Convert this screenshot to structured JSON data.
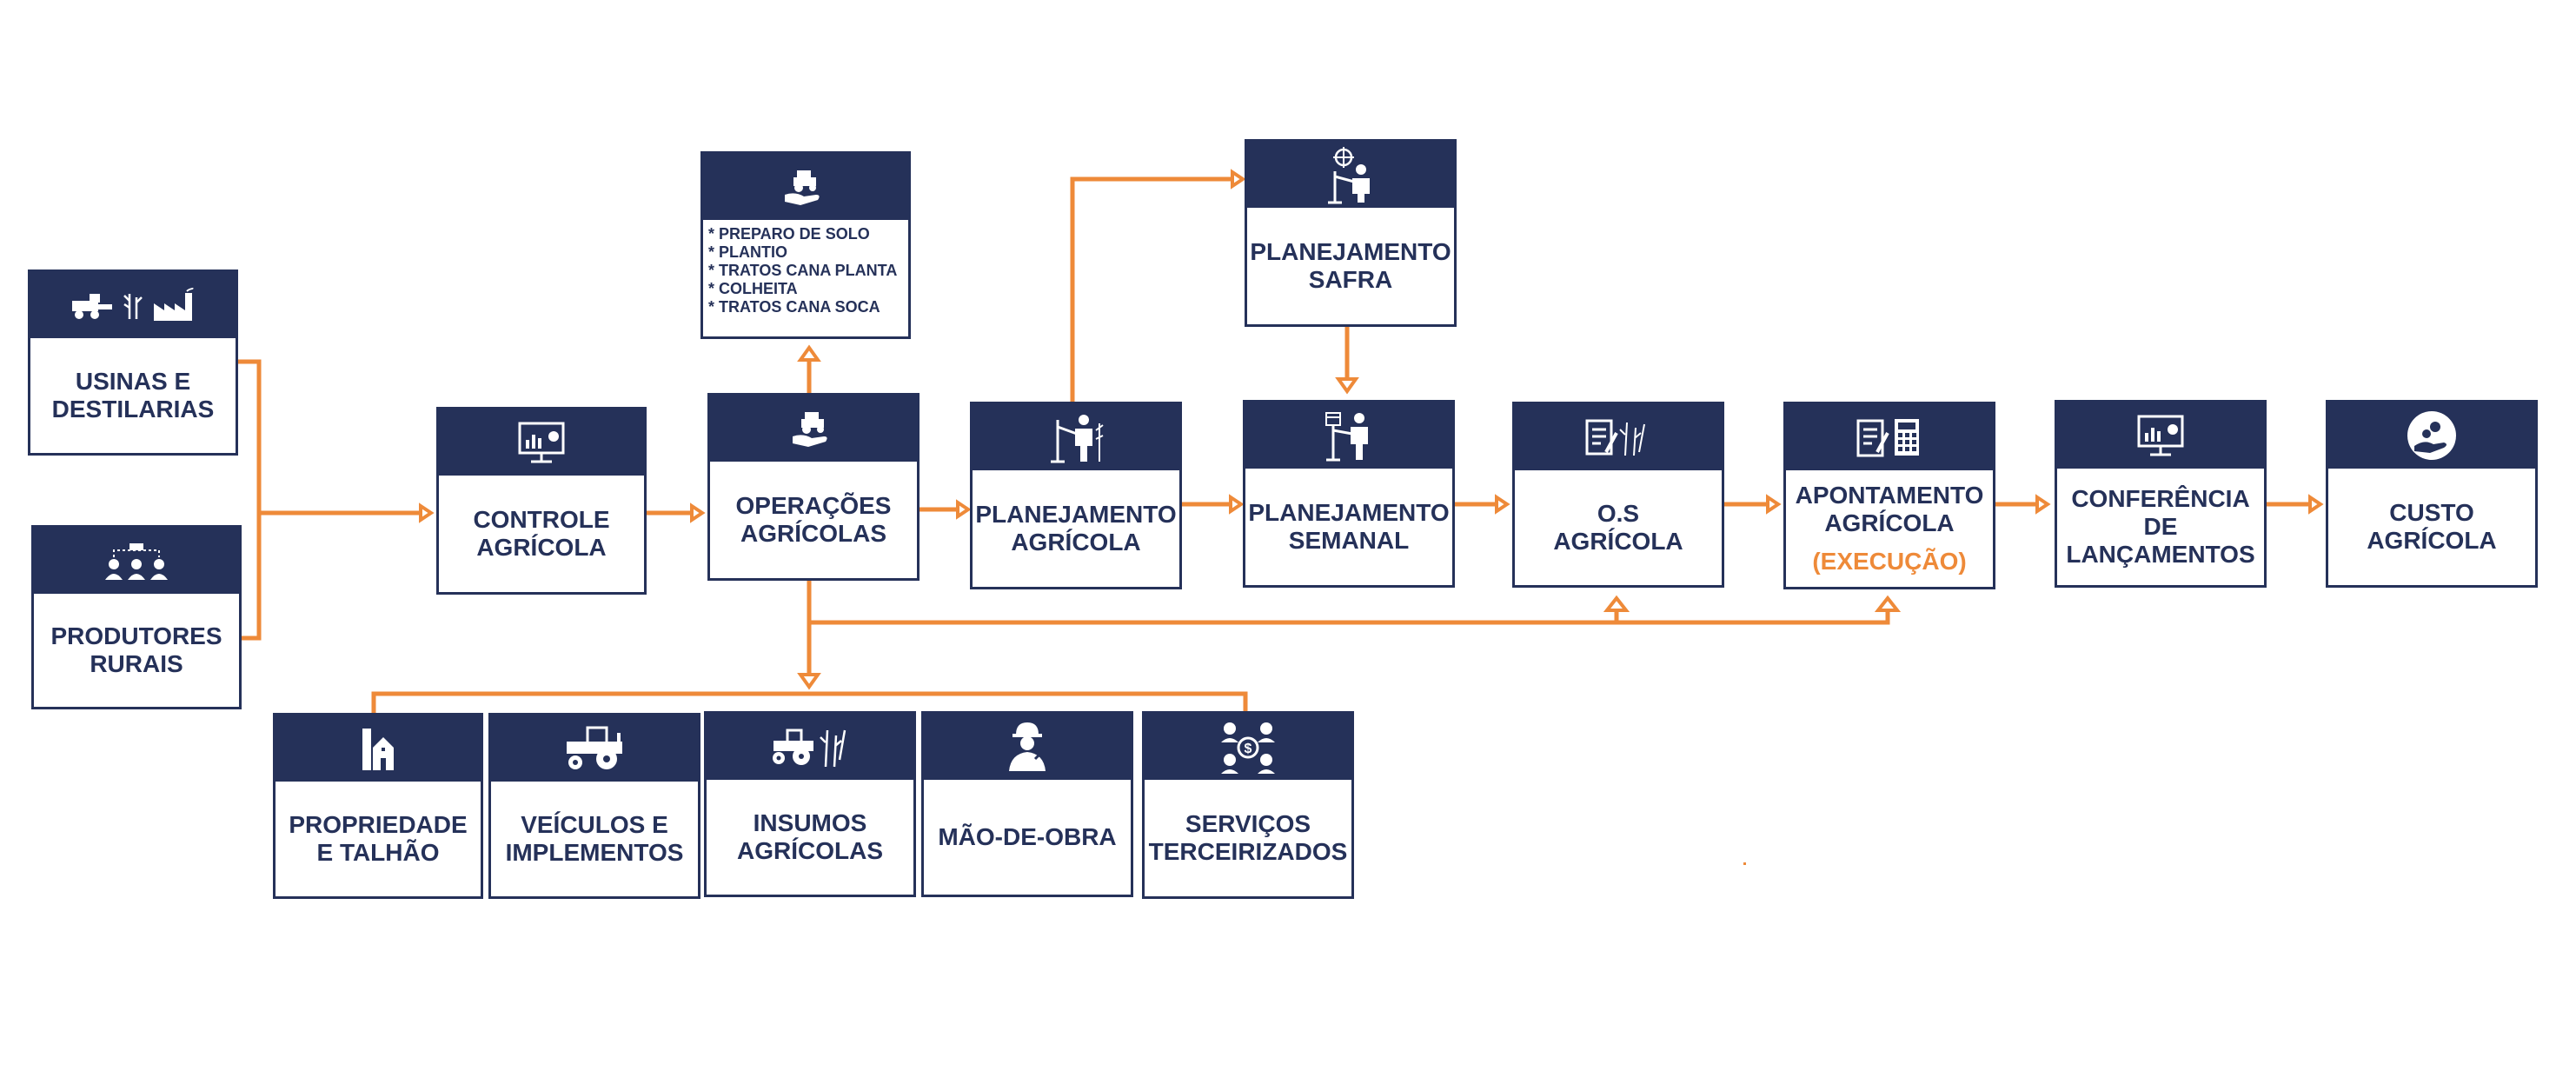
{
  "colors": {
    "navy": "#253159",
    "orange": "#ee8a39",
    "background": "#ffffff"
  },
  "nodes": {
    "usinas": {
      "lines": [
        "USINAS E",
        "DESTILARIAS"
      ],
      "icons": [
        "harvester-icon",
        "sugarcane-icon",
        "factory-icon"
      ]
    },
    "produtores": {
      "lines": [
        "PRODUTORES",
        "RURAIS"
      ],
      "icons": [
        "team-farmers-icon"
      ]
    },
    "controle": {
      "lines": [
        "CONTROLE",
        "AGRÍCOLA"
      ],
      "icons": [
        "monitor-chart-icon"
      ]
    },
    "operacoes": {
      "lines": [
        "OPERAÇÕES",
        "AGRÍCOLAS"
      ],
      "icons": [
        "tractor-hand-icon"
      ]
    },
    "operacoes_lista": {
      "items": [
        "* PREPARO DE SOLO",
        "* PLANTIO",
        "* TRATOS CANA PLANTA",
        "* COLHEITA",
        "* TRATOS CANA SOCA"
      ],
      "icons": [
        "tractor-hand-icon"
      ]
    },
    "plan_safra": {
      "lines": [
        "PLANEJAMENTO",
        "SAFRA"
      ],
      "icons": [
        "planner-target-icon"
      ]
    },
    "plan_agricola": {
      "lines": [
        "PLANEJAMENTO",
        "AGRÍCOLA"
      ],
      "icons": [
        "planner-sugarcane-icon"
      ]
    },
    "plan_semanal": {
      "lines": [
        "PLANEJAMENTO",
        "SEMANAL"
      ],
      "icons": [
        "planner-calendar-icon"
      ]
    },
    "os": {
      "lines": [
        "O.S",
        "AGRÍCOLA"
      ],
      "icons": [
        "document-sugarcane-icon"
      ]
    },
    "apontamento": {
      "lines": [
        "APONTAMENTO",
        "AGRÍCOLA"
      ],
      "accent": "(EXECUÇÃO)",
      "icons": [
        "document-calculator-icon"
      ]
    },
    "conferencia": {
      "lines": [
        "CONFERÊNCIA",
        "DE",
        "LANÇAMENTOS"
      ],
      "icons": [
        "monitor-chart-icon"
      ]
    },
    "custo": {
      "lines": [
        "CUSTO",
        "AGRÍCOLA"
      ],
      "icons": [
        "coins-hand-icon"
      ]
    },
    "propriedade": {
      "lines": [
        "PROPRIEDADE",
        "E TALHÃO"
      ],
      "icons": [
        "farm-building-icon"
      ]
    },
    "veiculos": {
      "lines": [
        "VEÍCULOS E",
        "IMPLEMENTOS"
      ],
      "icons": [
        "tractor-icon"
      ]
    },
    "insumos": {
      "lines": [
        "INSUMOS",
        "AGRÍCOLAS"
      ],
      "icons": [
        "tractor-sugarcane-icon"
      ]
    },
    "maodeobra": {
      "lines": [
        "MÃO-DE-OBRA"
      ],
      "icons": [
        "worker-icon"
      ]
    },
    "servicos": {
      "lines": [
        "SERVIÇOS",
        "TERCEIRIZADOS"
      ],
      "icons": [
        "outsourcing-icon"
      ]
    }
  },
  "connections": [
    {
      "from": "usinas",
      "to": "controle"
    },
    {
      "from": "produtores",
      "to": "controle"
    },
    {
      "from": "controle",
      "to": "operacoes"
    },
    {
      "from": "operacoes",
      "to": "operacoes_lista"
    },
    {
      "from": "operacoes",
      "to": "plan_agricola"
    },
    {
      "from": "plan_agricola",
      "to": "plan_safra"
    },
    {
      "from": "plan_safra",
      "to": "plan_semanal"
    },
    {
      "from": "plan_agricola",
      "to": "plan_semanal"
    },
    {
      "from": "plan_semanal",
      "to": "os"
    },
    {
      "from": "os",
      "to": "apontamento"
    },
    {
      "from": "apontamento",
      "to": "conferencia"
    },
    {
      "from": "conferencia",
      "to": "custo"
    },
    {
      "from": "operacoes",
      "to": "os"
    },
    {
      "from": "operacoes",
      "to": "apontamento"
    },
    {
      "from": "operacoes",
      "to": "propriedade"
    },
    {
      "from": "operacoes",
      "to": "veiculos"
    },
    {
      "from": "operacoes",
      "to": "insumos"
    },
    {
      "from": "operacoes",
      "to": "maodeobra"
    },
    {
      "from": "operacoes",
      "to": "servicos"
    }
  ]
}
